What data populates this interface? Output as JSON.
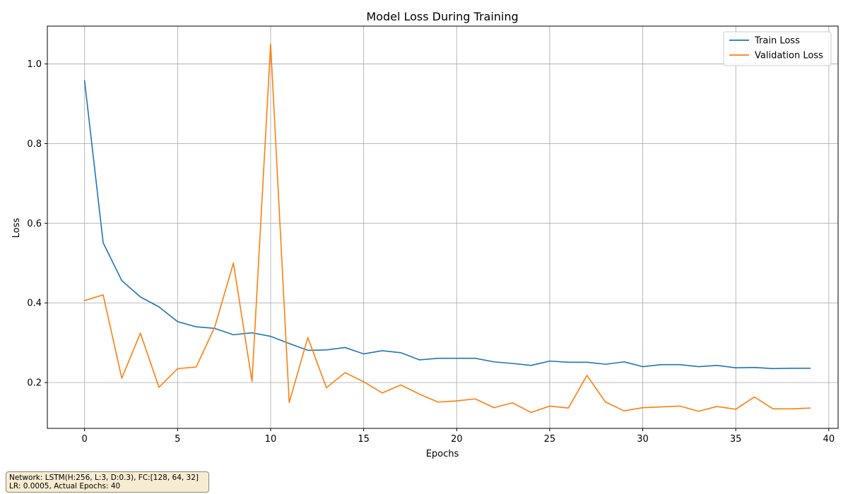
{
  "chart_data": {
    "type": "line",
    "title": "Model Loss During Training",
    "xlabel": "Epochs",
    "ylabel": "Loss",
    "xlim": [
      -2,
      40.5
    ],
    "ylim": [
      0.085,
      1.095
    ],
    "xticks": [
      0,
      5,
      10,
      15,
      20,
      25,
      30,
      35,
      40
    ],
    "yticks": [
      0.2,
      0.4,
      0.6,
      0.8,
      1.0
    ],
    "ytick_labels": [
      "0.2",
      "0.4",
      "0.6",
      "0.8",
      "1.0"
    ],
    "grid": true,
    "legend_position": "top-right",
    "x": [
      0,
      1,
      2,
      3,
      4,
      5,
      6,
      7,
      8,
      9,
      10,
      11,
      12,
      13,
      14,
      15,
      16,
      17,
      18,
      19,
      20,
      21,
      22,
      23,
      24,
      25,
      26,
      27,
      28,
      29,
      30,
      31,
      32,
      33,
      34,
      35,
      36,
      37,
      38,
      39
    ],
    "series": [
      {
        "name": "Train Loss",
        "color": "#1f77b4",
        "values": [
          0.958,
          0.551,
          0.456,
          0.415,
          0.39,
          0.353,
          0.34,
          0.336,
          0.32,
          0.325,
          0.316,
          0.298,
          0.281,
          0.282,
          0.288,
          0.272,
          0.28,
          0.275,
          0.257,
          0.261,
          0.261,
          0.261,
          0.252,
          0.248,
          0.243,
          0.254,
          0.251,
          0.251,
          0.246,
          0.252,
          0.24,
          0.245,
          0.245,
          0.24,
          0.243,
          0.237,
          0.238,
          0.235,
          0.236,
          0.236
        ]
      },
      {
        "name": "Validation Loss",
        "color": "#ff7f0e",
        "values": [
          0.406,
          0.42,
          0.211,
          0.324,
          0.188,
          0.235,
          0.239,
          0.34,
          0.5,
          0.203,
          1.05,
          0.15,
          0.313,
          0.187,
          0.225,
          0.202,
          0.174,
          0.194,
          0.171,
          0.151,
          0.154,
          0.159,
          0.137,
          0.149,
          0.125,
          0.141,
          0.136,
          0.218,
          0.151,
          0.129,
          0.137,
          0.139,
          0.141,
          0.128,
          0.14,
          0.133,
          0.164,
          0.134,
          0.134,
          0.136
        ]
      }
    ]
  },
  "info": {
    "line1": "Network: LSTM(H:256, L:3, D:0.3), FC:[128, 64, 32]",
    "line2": "LR: 0.0005, Actual Epochs: 40"
  }
}
